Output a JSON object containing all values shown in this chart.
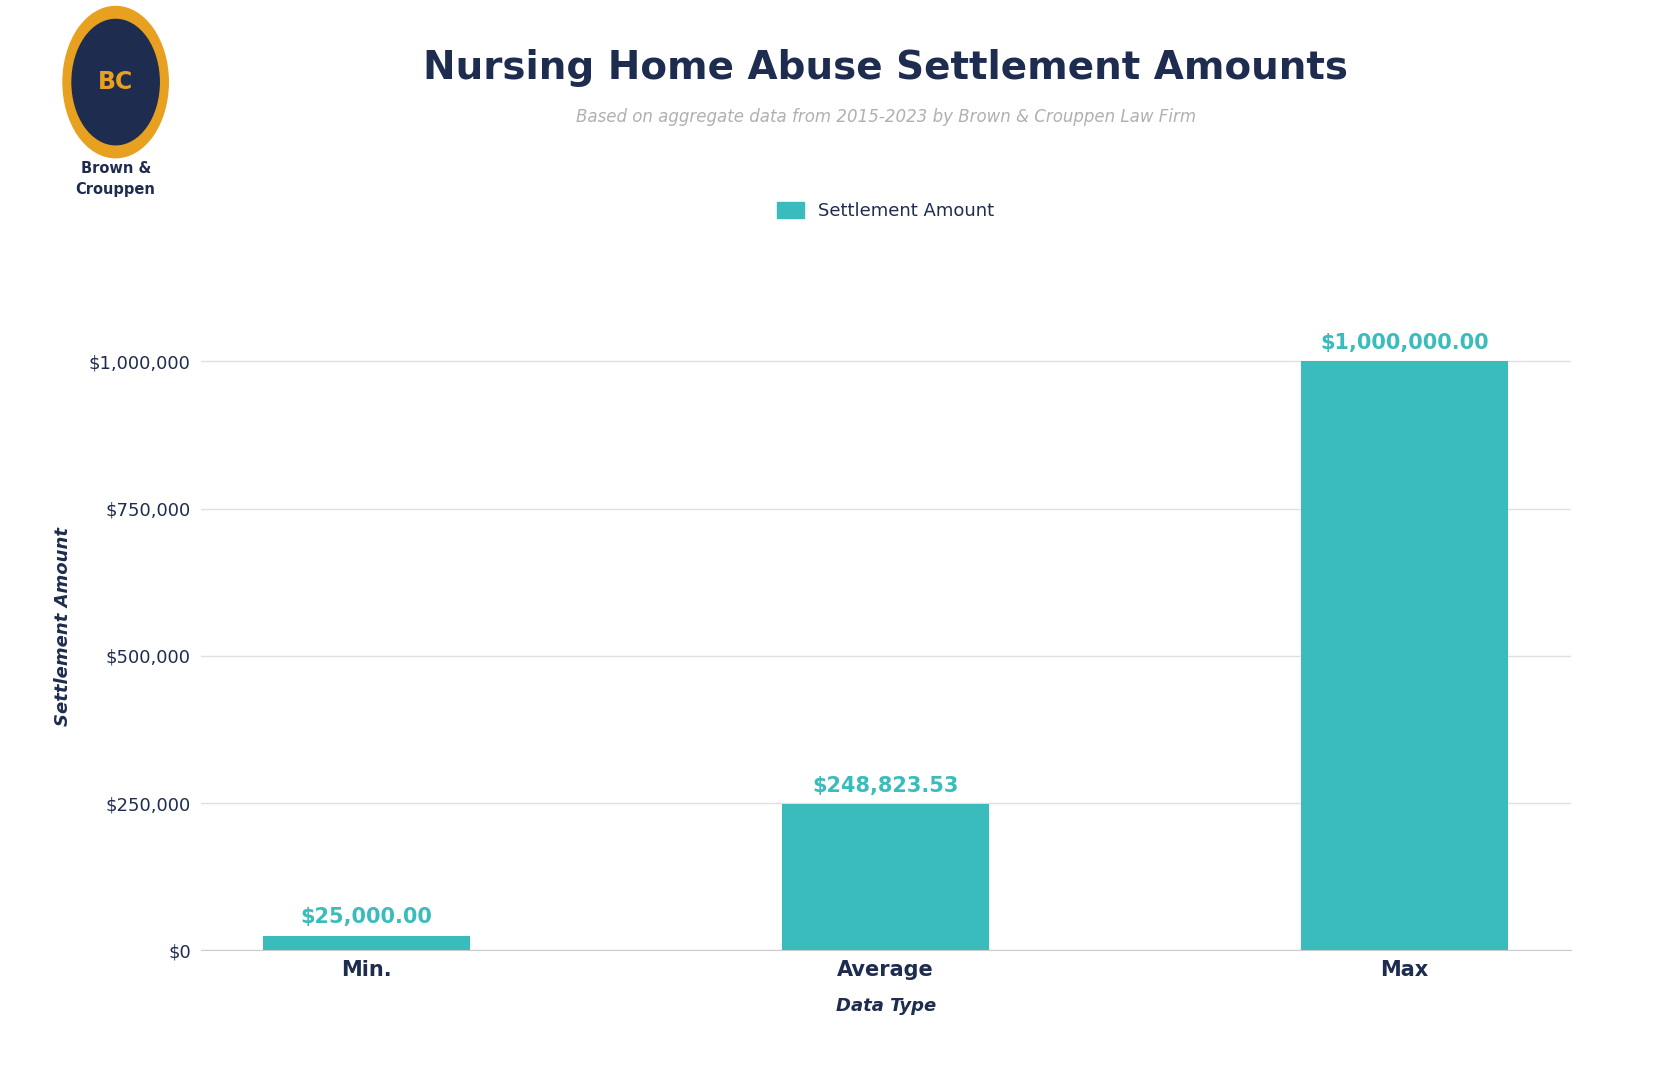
{
  "title": "Nursing Home Abuse Settlement Amounts",
  "subtitle": "Based on aggregate data from 2015-2023 by Brown & Crouppen Law Firm",
  "categories": [
    "Min.",
    "Average",
    "Max"
  ],
  "values": [
    25000.0,
    248823.53,
    1000000.0
  ],
  "bar_labels": [
    "$25,000.00",
    "$248,823.53",
    "$1,000,000.00"
  ],
  "bar_color": "#3bbcbc",
  "label_color": "#3bbcbc",
  "title_color": "#1e2d4f",
  "subtitle_color": "#b0b0b0",
  "xlabel": "Data Type",
  "ylabel": "Settlement Amount",
  "ylabel_color": "#1e2d4f",
  "xlabel_color": "#1e2d4f",
  "tick_color": "#1e2d4f",
  "background_color": "#ffffff",
  "legend_label": "Settlement Amount",
  "ylim": [
    0,
    1100000
  ],
  "yticks": [
    0,
    250000,
    500000,
    750000,
    1000000
  ],
  "ytick_labels": [
    "$0",
    "$250,000",
    "$500,000",
    "$750,000",
    "$1,000,000"
  ],
  "grid_color": "#e0e0e0",
  "title_fontsize": 28,
  "subtitle_fontsize": 12,
  "label_fontsize": 15,
  "tick_fontsize": 13,
  "axis_label_fontsize": 13,
  "legend_fontsize": 13,
  "logo_circle_outer_color": "#e8a020",
  "logo_circle_inner_color": "#1e2d4f",
  "logo_text_color": "#e8a020",
  "logo_firm_name": "Brown &\nCrouppen",
  "logo_firm_color": "#1e2d4f"
}
